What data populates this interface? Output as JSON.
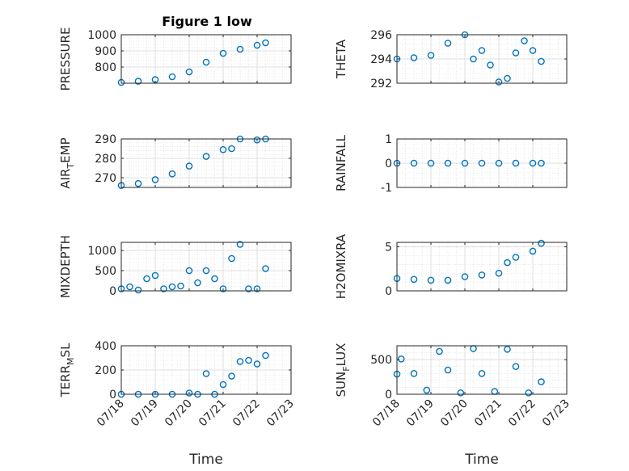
{
  "figure": {
    "title": "Figure 1 low",
    "marker_color": "#0072BD",
    "grid": true,
    "minor_grid": true
  },
  "chart_data": [
    {
      "type": "scatter",
      "ylabel": "PRESSURE",
      "ylim": [
        700,
        1000
      ],
      "yticks": [
        800,
        900,
        1000
      ],
      "x": [
        "07/18",
        "07/18 12:00",
        "07/19",
        "07/19 12:00",
        "07/20",
        "07/20 12:00",
        "07/21",
        "07/21 12:00",
        "07/22",
        "07/22 06:00"
      ],
      "values": [
        705,
        712,
        722,
        740,
        770,
        830,
        885,
        910,
        935,
        950
      ],
      "xlim": [
        "07/18",
        "07/23"
      ],
      "xticklabels": []
    },
    {
      "type": "scatter",
      "ylabel": "THETA",
      "ylim": [
        292,
        296
      ],
      "yticks": [
        292,
        294,
        296
      ],
      "x": [
        "07/18",
        "07/18 12:00",
        "07/19",
        "07/19 12:00",
        "07/20",
        "07/20 06:00",
        "07/20 12:00",
        "07/20 18:00",
        "07/21",
        "07/21 06:00",
        "07/21 12:00",
        "07/21 18:00",
        "07/22",
        "07/22 06:00"
      ],
      "values": [
        294.0,
        294.1,
        294.3,
        295.3,
        296.0,
        294.0,
        294.7,
        293.5,
        292.1,
        292.4,
        294.5,
        295.5,
        294.7,
        293.8
      ],
      "xlim": [
        "07/18",
        "07/23"
      ],
      "xticklabels": []
    },
    {
      "type": "scatter",
      "ylabel": "AIR_TEMP",
      "ylim": [
        265,
        290
      ],
      "yticks": [
        270,
        280,
        290
      ],
      "x": [
        "07/18",
        "07/18 12:00",
        "07/19",
        "07/19 12:00",
        "07/20",
        "07/20 12:00",
        "07/21",
        "07/21 06:00",
        "07/21 12:00",
        "07/22",
        "07/22 06:00"
      ],
      "values": [
        266,
        267,
        269,
        272,
        276,
        281,
        284.5,
        285,
        290,
        289.5,
        290
      ],
      "xlim": [
        "07/18",
        "07/23"
      ],
      "xticklabels": []
    },
    {
      "type": "scatter",
      "ylabel": "RAINFALL",
      "ylim": [
        -1,
        1
      ],
      "yticks": [
        -1,
        0,
        1
      ],
      "x": [
        "07/18",
        "07/18 12:00",
        "07/19",
        "07/19 12:00",
        "07/20",
        "07/20 12:00",
        "07/21",
        "07/21 12:00",
        "07/22",
        "07/22 06:00"
      ],
      "values": [
        0,
        0,
        0,
        0,
        0,
        0,
        0,
        0,
        0,
        0
      ],
      "xlim": [
        "07/18",
        "07/23"
      ],
      "xticklabels": []
    },
    {
      "type": "scatter",
      "ylabel": "MIXDEPTH",
      "ylim": [
        0,
        1200
      ],
      "yticks": [
        0,
        500,
        1000
      ],
      "x": [
        "07/18",
        "07/18 06:00",
        "07/18 12:00",
        "07/18 18:00",
        "07/19",
        "07/19 06:00",
        "07/19 12:00",
        "07/19 18:00",
        "07/20",
        "07/20 06:00",
        "07/20 12:00",
        "07/20 18:00",
        "07/21",
        "07/21 06:00",
        "07/21 12:00",
        "07/21 18:00",
        "07/22",
        "07/22 06:00"
      ],
      "values": [
        50,
        100,
        20,
        300,
        380,
        50,
        100,
        120,
        500,
        200,
        500,
        300,
        50,
        800,
        1150,
        50,
        50,
        550
      ],
      "xlim": [
        "07/18",
        "07/23"
      ],
      "xticklabels": []
    },
    {
      "type": "scatter",
      "ylabel": "H2OMIXRA",
      "ylim": [
        0,
        5.5
      ],
      "yticks": [
        0,
        5
      ],
      "x": [
        "07/18",
        "07/18 12:00",
        "07/19",
        "07/19 12:00",
        "07/20",
        "07/20 12:00",
        "07/21",
        "07/21 06:00",
        "07/21 12:00",
        "07/22",
        "07/22 06:00"
      ],
      "values": [
        1.4,
        1.3,
        1.2,
        1.2,
        1.6,
        1.8,
        2.0,
        3.2,
        3.8,
        4.5,
        5.4
      ],
      "xlim": [
        "07/18",
        "07/23"
      ],
      "xticklabels": []
    },
    {
      "type": "scatter",
      "ylabel": "TERR_MSL",
      "ylim": [
        0,
        400
      ],
      "yticks": [
        0,
        200,
        400
      ],
      "x": [
        "07/18",
        "07/18 12:00",
        "07/19",
        "07/19 12:00",
        "07/20",
        "07/20 06:00",
        "07/20 12:00",
        "07/20 18:00",
        "07/21",
        "07/21 06:00",
        "07/21 12:00",
        "07/21 18:00",
        "07/22",
        "07/22 06:00"
      ],
      "values": [
        0,
        0,
        0,
        0,
        10,
        0,
        170,
        0,
        80,
        150,
        270,
        280,
        250,
        320
      ],
      "xlim": [
        "07/18",
        "07/23"
      ],
      "xticks": [
        "07/18",
        "07/19",
        "07/20",
        "07/21",
        "07/22",
        "07/23"
      ],
      "xlabel": "Time"
    },
    {
      "type": "scatter",
      "ylabel": "SUN_FLUX",
      "ylim": [
        0,
        700
      ],
      "yticks": [
        0,
        500
      ],
      "x": [
        "07/18",
        "07/18 03:00",
        "07/18 12:00",
        "07/18 21:00",
        "07/19 06:00",
        "07/19 12:00",
        "07/19 21:00",
        "07/20 06:00",
        "07/20 12:00",
        "07/20 21:00",
        "07/21 06:00",
        "07/21 12:00",
        "07/21 21:00",
        "07/22 06:00"
      ],
      "values": [
        290,
        510,
        300,
        60,
        620,
        350,
        20,
        660,
        300,
        40,
        650,
        400,
        20,
        180
      ],
      "xlim": [
        "07/18",
        "07/23"
      ],
      "xticks": [
        "07/18",
        "07/19",
        "07/20",
        "07/21",
        "07/22",
        "07/23"
      ],
      "xlabel": "Time"
    }
  ]
}
